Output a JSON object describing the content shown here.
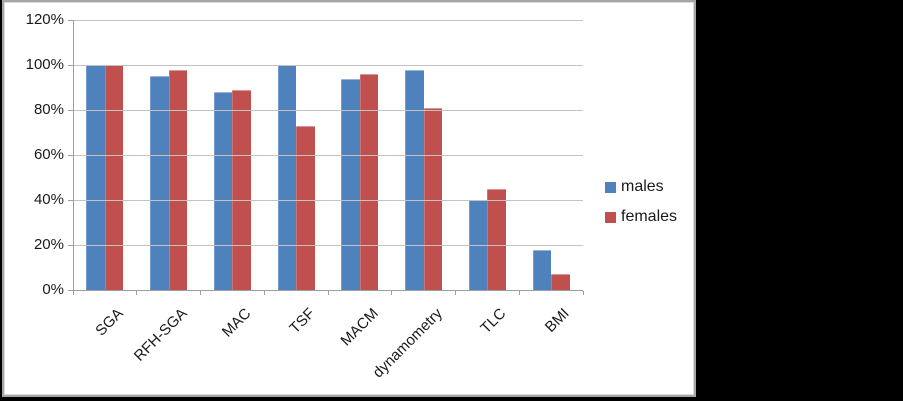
{
  "figure": {
    "outer_background": "#000000",
    "panel_background": "#ffffff",
    "frame_border_color": "#a6a6a6",
    "gridline_color": "#c3c3c3",
    "axis_color": "#9e9e9e",
    "text_color": "#1a1a1a"
  },
  "chart_data": {
    "type": "bar",
    "title": "",
    "xlabel": "",
    "ylabel": "",
    "categories": [
      "SGA",
      "RFH-SGA",
      "MAC",
      "TSF",
      "MACM",
      "dynamometry",
      "TLC",
      "BMI"
    ],
    "series": [
      {
        "name": "males",
        "color": "#4F81BD",
        "values": [
          100,
          95,
          88,
          100,
          94,
          98,
          40,
          18
        ]
      },
      {
        "name": "females",
        "color": "#C0504D",
        "values": [
          100,
          98,
          89,
          73,
          96,
          81,
          45,
          7
        ]
      }
    ],
    "ylim": [
      0,
      120
    ],
    "ytick_step": 20,
    "ytick_labels": [
      "0%",
      "20%",
      "40%",
      "60%",
      "80%",
      "100%",
      "120%"
    ],
    "ytick_format": "percent",
    "grid": true,
    "legend_position": "right",
    "legend_entries": [
      "males",
      "females"
    ]
  }
}
